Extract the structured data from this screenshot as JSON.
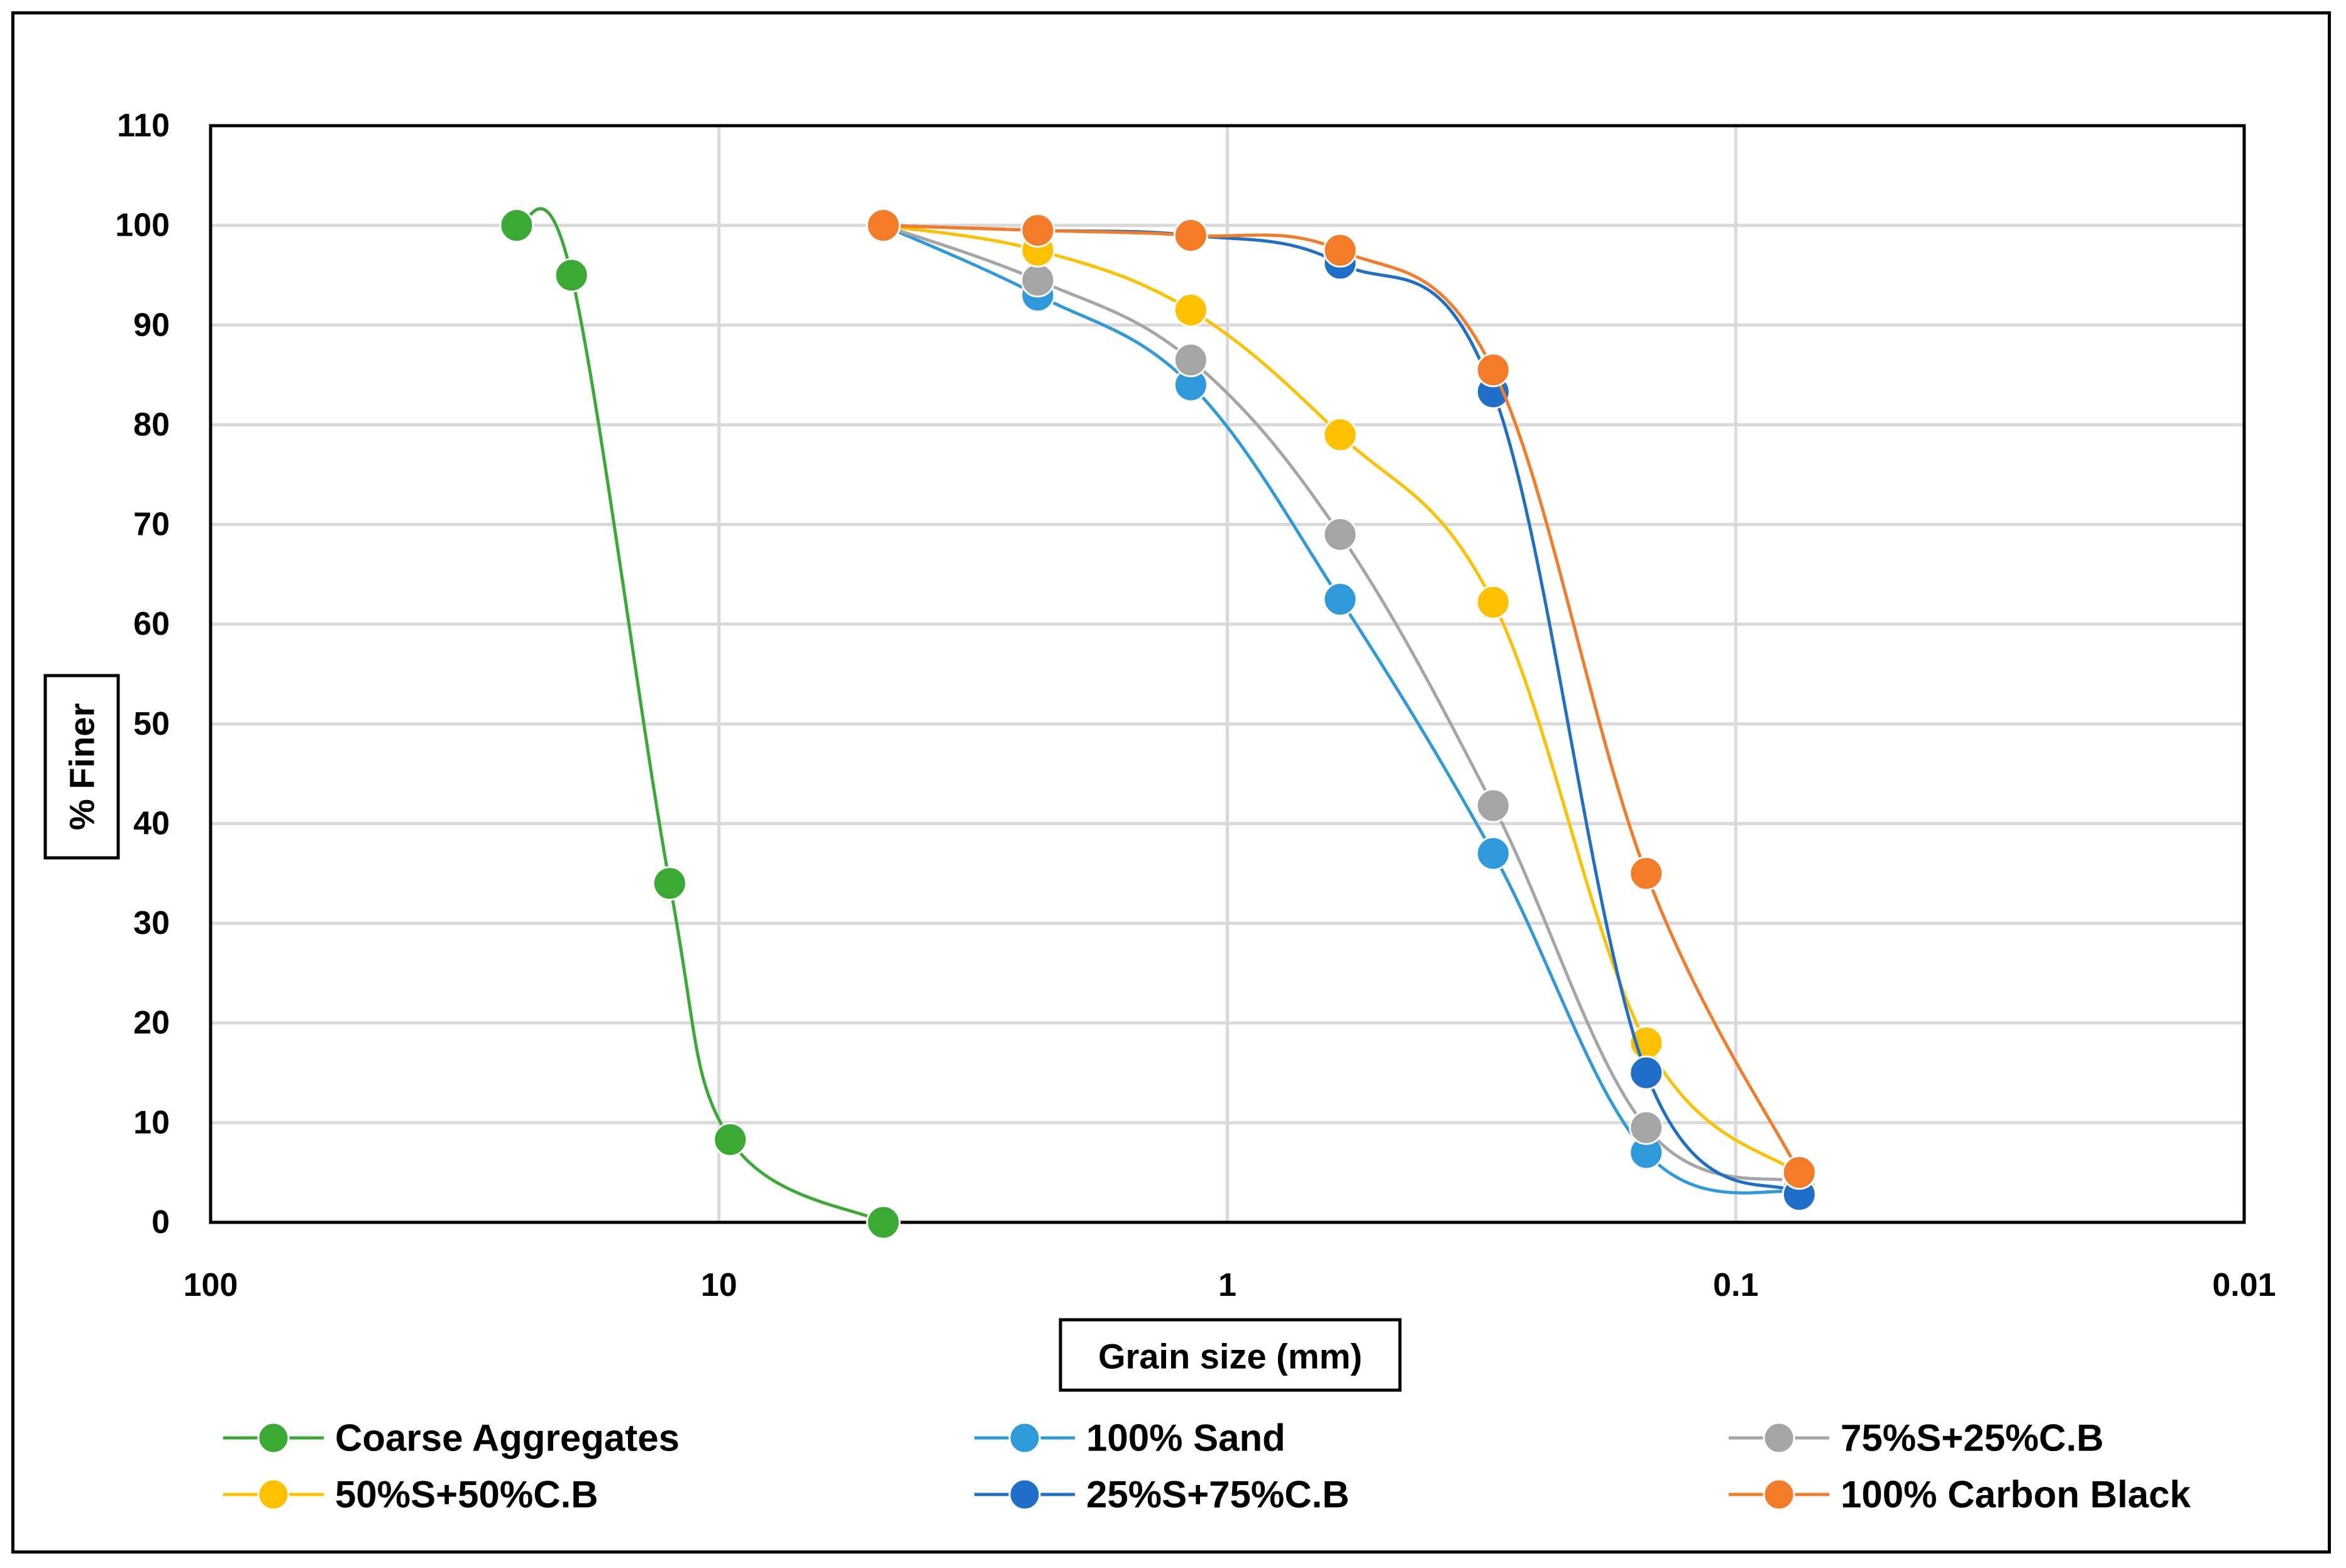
{
  "chart_data": {
    "type": "line",
    "title": "",
    "xlabel": "Grain size (mm)",
    "ylabel": "% Finer",
    "x_scale": "log",
    "x_reversed": true,
    "xlim": [
      100,
      0.01
    ],
    "ylim": [
      0,
      110
    ],
    "grid": true,
    "x_ticks": [
      100,
      10,
      1,
      0.1,
      0.01
    ],
    "x_tick_labels": [
      "100",
      "10",
      "1",
      "0.1",
      "0.01"
    ],
    "y_ticks": [
      0,
      10,
      20,
      30,
      40,
      50,
      60,
      70,
      80,
      90,
      100,
      110
    ],
    "y_tick_labels": [
      "0",
      "10",
      "20",
      "30",
      "40",
      "50",
      "60",
      "70",
      "80",
      "90",
      "100",
      "110"
    ],
    "legend_position": "bottom",
    "series": [
      {
        "name": "Coarse Aggregates",
        "color": "#3BAA35",
        "x": [
          25,
          19.5,
          12.5,
          9.5,
          4.75
        ],
        "y": [
          100,
          95,
          34,
          8.3,
          0
        ]
      },
      {
        "name": "100% Sand",
        "color": "#2F9ADB",
        "x": [
          4.75,
          2.36,
          1.18,
          0.6,
          0.3,
          0.15,
          0.075
        ],
        "y": [
          100,
          93,
          84,
          62.5,
          37,
          7,
          3
        ]
      },
      {
        "name": "75%S+25%C.B",
        "color": "#A5A5A5",
        "x": [
          4.75,
          2.36,
          1.18,
          0.6,
          0.3,
          0.15,
          0.075
        ],
        "y": [
          100,
          94.5,
          86.5,
          69,
          41.8,
          9.5,
          4
        ]
      },
      {
        "name": "50%S+50%C.B",
        "color": "#FFC000",
        "x": [
          4.75,
          2.36,
          1.18,
          0.6,
          0.3,
          0.15,
          0.075
        ],
        "y": [
          100,
          97.5,
          91.5,
          79,
          62.2,
          18,
          4.8
        ]
      },
      {
        "name": "25%S+75%C.B",
        "color": "#1F6FC9",
        "x": [
          4.75,
          2.36,
          1.18,
          0.6,
          0.3,
          0.15,
          0.075
        ],
        "y": [
          100,
          99.5,
          99,
          96.2,
          83.3,
          15,
          2.8
        ]
      },
      {
        "name": "100% Carbon Black",
        "color": "#F47B27",
        "x": [
          4.75,
          2.36,
          1.18,
          0.6,
          0.3,
          0.15,
          0.075
        ],
        "y": [
          100,
          99.5,
          99,
          97.5,
          85.5,
          35,
          5
        ]
      }
    ]
  }
}
